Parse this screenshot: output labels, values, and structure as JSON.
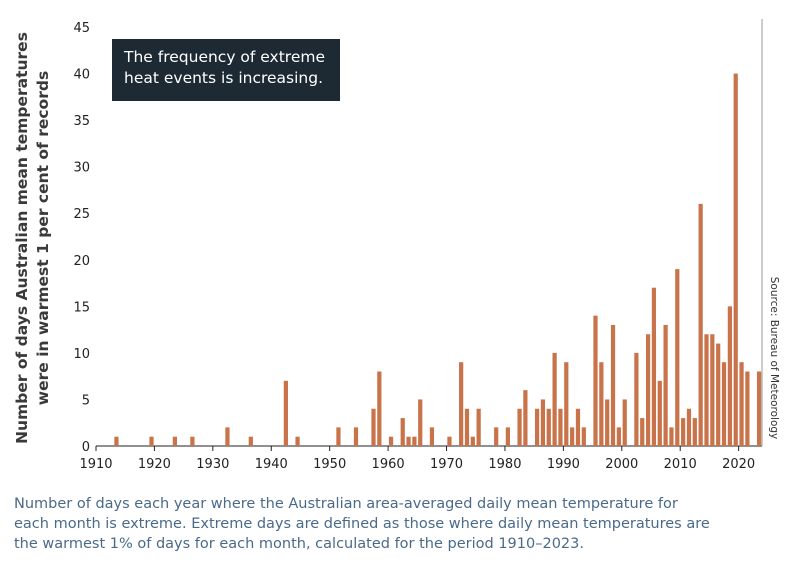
{
  "chart_data": {
    "type": "bar",
    "title": "",
    "xlabel": "",
    "ylabel": "Number of days Australian mean temperatures were in warmest 1 per cent of records",
    "ylabel_lines": [
      "Number of days Australian mean temperatures",
      "were in warmest 1 per cent of records"
    ],
    "xlim": [
      1910,
      2024
    ],
    "ylim": [
      0,
      45
    ],
    "x_ticks": [
      1910,
      1920,
      1930,
      1940,
      1950,
      1960,
      1970,
      1980,
      1990,
      2000,
      2010,
      2020
    ],
    "y_ticks": [
      0,
      5,
      10,
      15,
      20,
      25,
      30,
      35,
      40,
      45
    ],
    "grid": false,
    "bar_color": "#c8734a",
    "x": [
      1913,
      1919,
      1923,
      1926,
      1932,
      1936,
      1942,
      1944,
      1951,
      1954,
      1957,
      1958,
      1960,
      1962,
      1963,
      1964,
      1965,
      1967,
      1970,
      1972,
      1973,
      1974,
      1975,
      1978,
      1980,
      1982,
      1983,
      1985,
      1986,
      1987,
      1988,
      1989,
      1990,
      1991,
      1992,
      1993,
      1995,
      1996,
      1997,
      1998,
      1999,
      2000,
      2002,
      2003,
      2004,
      2005,
      2006,
      2007,
      2008,
      2009,
      2010,
      2011,
      2012,
      2013,
      2014,
      2015,
      2016,
      2017,
      2018,
      2019,
      2020,
      2021,
      2023
    ],
    "values": [
      1,
      1,
      1,
      1,
      2,
      1,
      7,
      1,
      2,
      2,
      4,
      8,
      1,
      3,
      1,
      1,
      5,
      2,
      1,
      9,
      4,
      1,
      4,
      2,
      2,
      4,
      6,
      4,
      5,
      4,
      10,
      4,
      9,
      2,
      4,
      2,
      14,
      9,
      5,
      13,
      2,
      5,
      10,
      3,
      12,
      17,
      7,
      13,
      2,
      19,
      3,
      4,
      3,
      26,
      12,
      12,
      11,
      9,
      15,
      40,
      9,
      8,
      8
    ]
  },
  "callout": {
    "line1": "The frequency of extreme",
    "line2": "heat events is increasing."
  },
  "source": "Source: Bureau of Meteorology",
  "caption": {
    "line1": "Number of days each year where the Australian area-averaged daily mean temperature for",
    "line2": "each month is extreme. Extreme days are defined as those where daily mean temperatures are",
    "line3": "the warmest 1% of days for each month, calculated for the period 1910–2023."
  }
}
